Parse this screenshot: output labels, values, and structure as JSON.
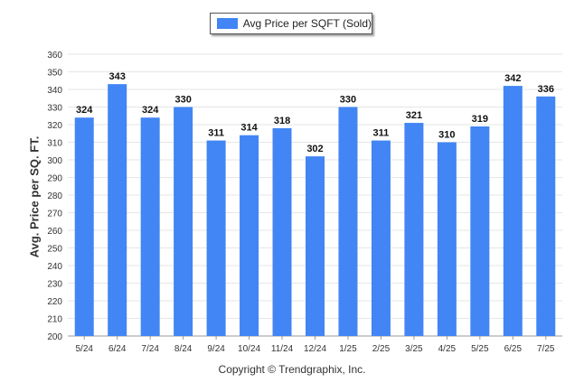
{
  "colors": {
    "bar": "#4285F4",
    "grid": "#e6e6e6",
    "axis": "#999999"
  },
  "legend": {
    "label": "Avg Price per SQFT (Sold)"
  },
  "copyright": "Copyright © Trendgraphix, Inc.",
  "chart_data": {
    "type": "bar",
    "title": "",
    "xlabel": "",
    "ylabel": "Avg. Price per SQ. FT.",
    "categories": [
      "5/24",
      "6/24",
      "7/24",
      "8/24",
      "9/24",
      "10/24",
      "11/24",
      "12/24",
      "1/25",
      "2/25",
      "3/25",
      "4/25",
      "5/25",
      "6/25",
      "7/25"
    ],
    "series": [
      {
        "name": "Avg Price per SQFT (Sold)",
        "values": [
          324,
          343,
          324,
          330,
          311,
          314,
          318,
          302,
          330,
          311,
          321,
          310,
          319,
          342,
          336
        ]
      }
    ],
    "ylim": [
      200,
      360
    ],
    "yticks": [
      200,
      210,
      220,
      230,
      240,
      250,
      260,
      270,
      280,
      290,
      300,
      310,
      320,
      330,
      340,
      350,
      360
    ],
    "grid": true,
    "legend_position": "top-center",
    "data_labels": true
  }
}
